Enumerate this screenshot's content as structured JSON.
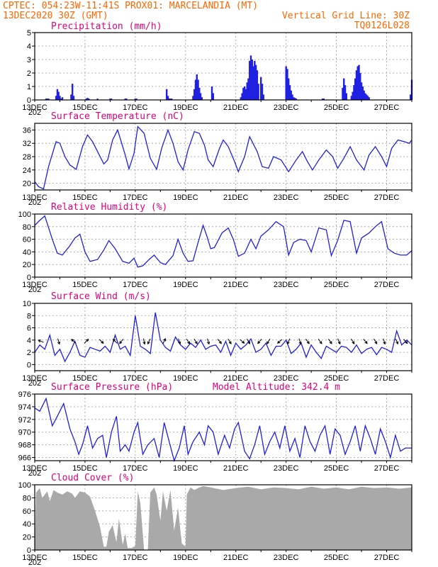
{
  "header": {
    "line1_left": "CPTEC:  054:23W-11:41S  PROX01: MARCELANDIA (MT)",
    "line2_left": "13DEC2020 30Z (GMT)",
    "line2_right": "Vertical Grid Line: 30Z",
    "line3_right": "TQ0126L028"
  },
  "x_ticks": [
    "13DEC",
    "15DEC",
    "17DEC",
    "19DEC",
    "21DEC",
    "23DEC",
    "25DEC",
    "27DEC"
  ],
  "x_tick_positions": [
    0,
    2,
    4,
    6,
    8,
    10,
    12,
    14
  ],
  "x_start_sub": "202",
  "x_range_days": [
    0,
    15
  ],
  "colors": {
    "line": "#2020e0",
    "bar": "#2020e0",
    "cloud": "#a9a9a9",
    "title": "#e0007a",
    "header": "#ff6600"
  },
  "chart_data": [
    {
      "type": "bar",
      "id": "precip",
      "title": "Precipitation (mm/h)",
      "ylim": [
        0,
        5
      ],
      "yticks": [
        0,
        1,
        2,
        3,
        4,
        5
      ],
      "x": [
        0.45,
        0.5,
        0.55,
        0.85,
        0.9,
        0.95,
        1.0,
        1.05,
        1.1,
        1.45,
        1.5,
        1.55,
        2.05,
        2.1,
        2.15,
        2.5,
        3.0,
        3.05,
        3.6,
        3.65,
        4.0,
        4.05,
        5.25,
        5.3,
        5.35,
        5.4,
        5.45,
        6.3,
        6.35,
        6.4,
        6.45,
        6.5,
        6.55,
        6.6,
        6.65,
        7.05,
        7.1,
        8.2,
        8.25,
        8.3,
        8.35,
        8.4,
        8.45,
        8.5,
        8.55,
        8.6,
        8.65,
        8.7,
        8.75,
        8.8,
        8.85,
        8.9,
        9.0,
        9.05,
        9.1,
        10.0,
        10.05,
        10.1,
        10.15,
        10.2,
        10.25,
        10.3,
        10.35,
        10.4,
        11.45,
        11.5,
        12.25,
        12.3,
        12.35,
        12.4,
        12.6,
        12.65,
        12.7,
        12.75,
        12.8,
        12.85,
        12.9,
        12.95,
        13.0,
        13.05,
        13.1,
        13.15,
        13.2,
        13.25,
        13.3,
        14.95,
        15.0
      ],
      "values": [
        0.1,
        0.1,
        0.1,
        0.3,
        0.8,
        0.6,
        0.3,
        0.1,
        0.2,
        0.4,
        1.2,
        0.3,
        0.1,
        0.15,
        0.1,
        0.1,
        0.1,
        0.1,
        0.1,
        0.1,
        0.1,
        0.1,
        0.8,
        0.3,
        0.1,
        0.1,
        0.1,
        0.3,
        0.8,
        1.5,
        1.9,
        1.5,
        0.9,
        0.5,
        0.2,
        1.0,
        0.5,
        0.2,
        0.5,
        0.9,
        1.0,
        0.8,
        1.3,
        1.6,
        2.9,
        3.3,
        3.0,
        2.5,
        2.9,
        2.6,
        2.2,
        1.2,
        1.7,
        1.2,
        0.4,
        2.5,
        2.3,
        1.6,
        1.1,
        0.7,
        0.4,
        0.2,
        0.15,
        0.1,
        0.1,
        0.1,
        0.9,
        1.6,
        1.1,
        0.5,
        0.3,
        0.6,
        1.1,
        1.6,
        2.2,
        2.5,
        2.6,
        2.0,
        1.3,
        1.0,
        0.7,
        0.5,
        0.4,
        0.3,
        0.2,
        0.4,
        1.5
      ]
    },
    {
      "type": "line",
      "id": "temp",
      "title": "Surface Temperature (nC)",
      "ylim": [
        18,
        38
      ],
      "yticks": [
        20,
        24,
        28,
        32,
        36
      ],
      "x": [
        0,
        0.15,
        0.35,
        0.55,
        0.85,
        1.0,
        1.2,
        1.4,
        1.65,
        1.9,
        2.1,
        2.3,
        2.5,
        2.75,
        2.9,
        3.1,
        3.3,
        3.6,
        3.75,
        3.95,
        4.1,
        4.35,
        4.6,
        4.85,
        5.05,
        5.3,
        5.5,
        5.7,
        5.9,
        6.1,
        6.35,
        6.55,
        6.75,
        6.9,
        7.1,
        7.35,
        7.5,
        7.7,
        7.95,
        8.1,
        8.35,
        8.55,
        8.85,
        9.05,
        9.3,
        9.5,
        9.8,
        10.1,
        10.4,
        10.65,
        10.85,
        11.05,
        11.3,
        11.6,
        11.85,
        12.05,
        12.3,
        12.55,
        12.8,
        13.1,
        13.3,
        13.55,
        13.8,
        14.0,
        14.2,
        14.45,
        14.7,
        14.9,
        15.0
      ],
      "values": [
        20.5,
        19.0,
        18.3,
        25.0,
        32.5,
        32.0,
        28.0,
        25.5,
        24.2,
        31.0,
        34.5,
        32.5,
        29.5,
        25.8,
        27.0,
        33.0,
        36.0,
        28.5,
        24.3,
        29.0,
        37.0,
        35.0,
        27.5,
        24.2,
        30.5,
        36.0,
        32.0,
        26.5,
        24.0,
        30.0,
        35.5,
        35.0,
        31.5,
        27.0,
        25.0,
        30.5,
        33.0,
        31.0,
        26.5,
        23.5,
        28.0,
        34.0,
        29.5,
        25.0,
        24.5,
        28.0,
        27.0,
        23.5,
        27.0,
        29.5,
        26.5,
        24.0,
        27.0,
        30.0,
        28.0,
        24.5,
        27.5,
        31.0,
        27.0,
        24.0,
        28.5,
        31.0,
        28.0,
        25.0,
        30.5,
        33.0,
        32.5,
        32.0,
        33.0
      ]
    },
    {
      "type": "line",
      "id": "rh",
      "title": "Relative Humidity (%)",
      "ylim": [
        0,
        100
      ],
      "yticks": [
        0,
        20,
        40,
        60,
        80,
        100
      ],
      "x": [
        0,
        0.2,
        0.4,
        0.7,
        0.9,
        1.1,
        1.4,
        1.6,
        1.8,
        2.0,
        2.2,
        2.5,
        2.75,
        2.95,
        3.2,
        3.5,
        3.75,
        3.95,
        4.1,
        4.3,
        4.55,
        4.75,
        5.0,
        5.2,
        5.5,
        5.7,
        5.9,
        6.1,
        6.3,
        6.5,
        6.7,
        6.85,
        7.0,
        7.15,
        7.45,
        7.7,
        7.9,
        8.1,
        8.35,
        8.6,
        8.8,
        9.0,
        9.3,
        9.6,
        9.9,
        10.1,
        10.3,
        10.55,
        10.8,
        11.0,
        11.3,
        11.6,
        11.8,
        12.05,
        12.3,
        12.55,
        12.8,
        13.0,
        13.3,
        13.55,
        13.8,
        14.05,
        14.3,
        14.55,
        14.8,
        15.0
      ],
      "values": [
        82,
        90,
        97,
        60,
        38,
        35,
        50,
        62,
        68,
        40,
        25,
        28,
        43,
        58,
        45,
        25,
        22,
        30,
        16,
        18,
        28,
        35,
        23,
        20,
        34,
        60,
        38,
        25,
        26,
        55,
        82,
        65,
        45,
        47,
        70,
        78,
        60,
        33,
        38,
        60,
        45,
        65,
        75,
        88,
        80,
        35,
        55,
        60,
        58,
        40,
        78,
        75,
        34,
        58,
        90,
        88,
        38,
        62,
        70,
        80,
        88,
        45,
        38,
        35,
        35,
        42
      ]
    },
    {
      "type": "line",
      "id": "wind",
      "title": "Surface Wind (m/s)",
      "ylim": [
        -1,
        10
      ],
      "yticks": [
        0,
        2,
        4,
        6,
        8,
        10
      ],
      "x": [
        0,
        0.2,
        0.4,
        0.6,
        0.8,
        1.0,
        1.2,
        1.4,
        1.6,
        1.8,
        2.0,
        2.2,
        2.4,
        2.6,
        2.8,
        3.0,
        3.2,
        3.4,
        3.6,
        3.8,
        4.0,
        4.2,
        4.4,
        4.6,
        4.8,
        5.0,
        5.2,
        5.4,
        5.6,
        5.8,
        6.0,
        6.2,
        6.4,
        6.6,
        6.8,
        7.0,
        7.2,
        7.4,
        7.6,
        7.8,
        8.0,
        8.2,
        8.4,
        8.6,
        8.8,
        9.0,
        9.2,
        9.4,
        9.6,
        9.8,
        10.0,
        10.2,
        10.4,
        10.6,
        10.8,
        11.0,
        11.2,
        11.4,
        11.6,
        11.8,
        12.0,
        12.2,
        12.4,
        12.6,
        12.8,
        13.0,
        13.2,
        13.4,
        13.6,
        13.8,
        14.0,
        14.2,
        14.4,
        14.6,
        14.8,
        15.0
      ],
      "values": [
        2.0,
        3.2,
        2.5,
        4.8,
        1.5,
        2.5,
        0.5,
        2.0,
        3.8,
        1.5,
        1.2,
        2.8,
        2.5,
        2.2,
        3.0,
        2.0,
        4.8,
        2.5,
        3.0,
        1.5,
        8.0,
        3.0,
        2.5,
        1.8,
        8.5,
        4.0,
        2.8,
        2.2,
        4.5,
        3.2,
        2.5,
        3.5,
        2.8,
        4.0,
        2.5,
        3.0,
        3.2,
        2.0,
        3.8,
        1.5,
        3.5,
        2.5,
        3.2,
        4.2,
        2.0,
        2.5,
        3.5,
        1.5,
        3.0,
        3.0,
        4.0,
        1.8,
        2.5,
        3.5,
        1.2,
        3.2,
        2.0,
        1.0,
        3.0,
        2.5,
        2.0,
        3.0,
        2.8,
        2.0,
        3.2,
        1.8,
        2.5,
        2.8,
        1.6,
        2.8,
        2.5,
        2.0,
        5.5,
        3.2,
        4.0,
        3.2
      ]
    },
    {
      "type": "line",
      "id": "press",
      "title": "Surface Pressure (hPa)",
      "annotation": "Model Altitude: 342.4 m",
      "ylim": [
        965.5,
        976
      ],
      "yticks": [
        966,
        968,
        970,
        972,
        974,
        976
      ],
      "x": [
        0,
        0.2,
        0.45,
        0.7,
        0.9,
        1.15,
        1.4,
        1.6,
        1.75,
        1.9,
        2.1,
        2.3,
        2.5,
        2.7,
        2.85,
        3.05,
        3.25,
        3.4,
        3.6,
        3.75,
        3.95,
        4.1,
        4.3,
        4.5,
        4.75,
        4.95,
        5.15,
        5.35,
        5.55,
        5.75,
        5.95,
        6.1,
        6.3,
        6.55,
        6.75,
        6.9,
        7.1,
        7.3,
        7.55,
        7.75,
        7.95,
        8.1,
        8.35,
        8.55,
        8.75,
        8.95,
        9.15,
        9.35,
        9.55,
        9.75,
        9.95,
        10.15,
        10.35,
        10.55,
        10.75,
        10.95,
        11.15,
        11.35,
        11.55,
        11.75,
        11.95,
        12.15,
        12.35,
        12.55,
        12.75,
        12.95,
        13.15,
        13.35,
        13.55,
        13.75,
        13.95,
        14.15,
        14.35,
        14.55,
        14.75,
        15.0
      ],
      "values": [
        973.8,
        973.3,
        975.3,
        971.0,
        972.5,
        974.5,
        970.5,
        968.5,
        966.5,
        968.0,
        971.0,
        967.5,
        969.0,
        969.5,
        966.0,
        970.0,
        972.5,
        967.0,
        968.0,
        967.0,
        970.0,
        971.5,
        966.5,
        968.0,
        969.0,
        966.0,
        971.5,
        968.5,
        965.5,
        967.5,
        971.0,
        966.5,
        968.5,
        970.0,
        968.0,
        971.0,
        970.0,
        966.5,
        969.5,
        967.5,
        970.5,
        971.5,
        967.0,
        965.8,
        968.0,
        971.0,
        966.5,
        968.5,
        970.0,
        967.5,
        971.0,
        967.0,
        969.0,
        966.0,
        971.0,
        968.5,
        967.0,
        969.5,
        971.0,
        966.5,
        970.5,
        969.5,
        966.5,
        968.5,
        971.0,
        967.0,
        971.0,
        969.0,
        966.5,
        970.5,
        968.5,
        966.0,
        969.5,
        967.0,
        967.5,
        967.5
      ]
    },
    {
      "type": "area",
      "id": "cloud",
      "title": "Cloud Cover (%)",
      "ylim": [
        0,
        100
      ],
      "yticks": [
        0,
        20,
        40,
        60,
        80,
        100
      ],
      "x": [
        0,
        0.05,
        0.2,
        0.3,
        0.5,
        0.6,
        0.75,
        0.9,
        1.1,
        1.3,
        1.5,
        1.6,
        1.8,
        2.0,
        2.2,
        2.4,
        2.6,
        2.75,
        2.85,
        2.95,
        3.1,
        3.25,
        3.35,
        3.5,
        3.6,
        3.7,
        3.85,
        4.0,
        4.1,
        4.2,
        4.35,
        4.5,
        4.6,
        4.75,
        4.85,
        5.0,
        5.1,
        5.25,
        5.4,
        5.55,
        5.7,
        5.85,
        6.0,
        6.05,
        6.2,
        6.35,
        6.5,
        6.7,
        7.0,
        7.5,
        8.0,
        8.5,
        9.0,
        9.5,
        10.0,
        10.5,
        11.0,
        11.5,
        12.0,
        12.5,
        13.0,
        13.5,
        14.0,
        14.5,
        15.0
      ],
      "values": [
        0,
        88,
        95,
        80,
        90,
        75,
        92,
        88,
        85,
        90,
        86,
        80,
        90,
        88,
        82,
        60,
        35,
        5,
        5,
        28,
        38,
        12,
        48,
        8,
        25,
        3,
        3,
        6,
        90,
        72,
        0,
        0,
        88,
        96,
        85,
        45,
        90,
        60,
        92,
        30,
        65,
        10,
        5,
        85,
        96,
        92,
        95,
        98,
        96,
        92,
        95,
        97,
        93,
        96,
        95,
        93,
        97,
        94,
        96,
        93,
        97,
        95,
        96,
        94,
        96
      ]
    }
  ],
  "wind_arrows": {
    "x": [
      0.25,
      0.95,
      1.55,
      2.05,
      2.65,
      3.2,
      3.45,
      4.35,
      4.55,
      5.15,
      5.75,
      6.1,
      6.4,
      6.9,
      7.35,
      7.75,
      8.25,
      8.5,
      8.95,
      9.3,
      9.75,
      10.1,
      10.55,
      10.85,
      11.35,
      11.75,
      12.1,
      12.65,
      13.15,
      13.55,
      13.9,
      14.4,
      14.75
    ],
    "u": [
      -1,
      0.3,
      -0.8,
      0.7,
      0.5,
      -0.6,
      -0.8,
      0.2,
      -0.5,
      0.4,
      0.3,
      0.6,
      0.5,
      0.3,
      0.6,
      0.5,
      0.7,
      0.5,
      -0.6,
      -0.5,
      -0.7,
      -0.4,
      0.3,
      0.5,
      0.6,
      0.5,
      0.4,
      0.5,
      0.6,
      0.5,
      0.3,
      0.4,
      0.6
    ],
    "v": [
      0.4,
      -1,
      0.8,
      0.7,
      -0.5,
      0.6,
      -1,
      -1,
      -1,
      0.8,
      -0.9,
      -0.9,
      -0.8,
      -1,
      -0.7,
      -0.8,
      -0.6,
      -0.8,
      -0.7,
      -0.8,
      -0.6,
      -0.9,
      -0.9,
      -0.7,
      -0.8,
      -0.7,
      -0.9,
      -0.8,
      -0.7,
      -0.8,
      -0.9,
      -0.8,
      -0.7
    ]
  }
}
